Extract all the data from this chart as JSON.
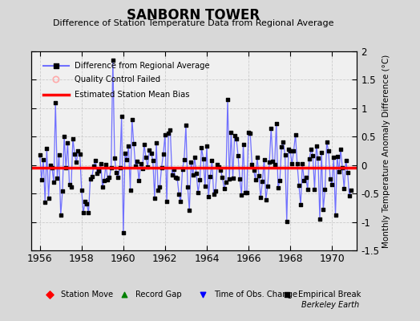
{
  "title": "SANBORN TOWER",
  "subtitle": "Difference of Station Temperature Data from Regional Average",
  "ylabel": "Monthly Temperature Anomaly Difference (°C)",
  "bias": -0.05,
  "ylim": [
    -1.5,
    2.0
  ],
  "xlim": [
    1955.6,
    1971.2
  ],
  "xticks": [
    1956,
    1958,
    1960,
    1962,
    1964,
    1966,
    1968,
    1970
  ],
  "yticks": [
    -1.5,
    -1.0,
    -0.5,
    0.0,
    0.5,
    1.0,
    1.5,
    2.0
  ],
  "line_color": "#7070ff",
  "marker_color": "black",
  "bias_color": "red",
  "fig_bg_color": "#d8d8d8",
  "plot_bg_color": "#f0f0f0",
  "seed": 12,
  "n_points": 180,
  "start_year": 1956.0,
  "end_year": 1971.0,
  "legend1_items": [
    "Difference from Regional Average",
    "Quality Control Failed",
    "Estimated Station Mean Bias"
  ],
  "legend2_items": [
    "Station Move",
    "Record Gap",
    "Time of Obs. Change",
    "Empirical Break"
  ]
}
